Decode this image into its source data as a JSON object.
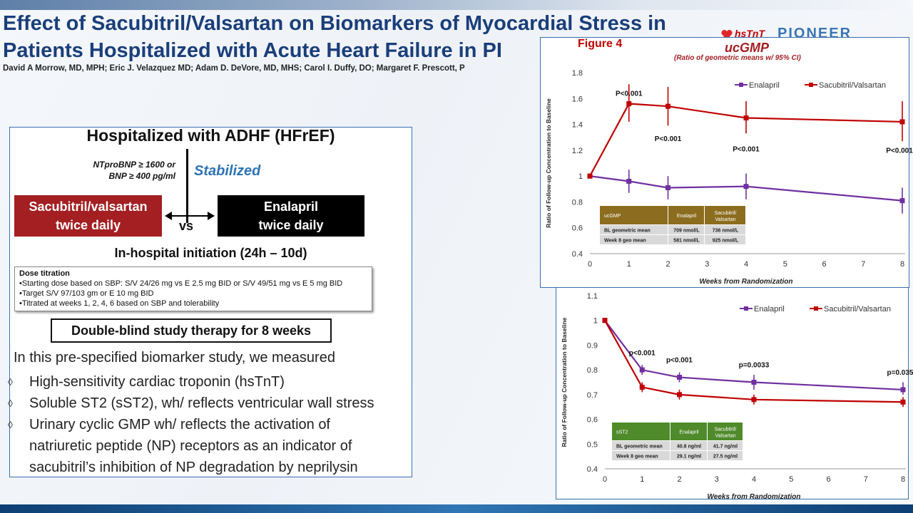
{
  "slide": {
    "title_line1": "Effect of Sacubitril/Valsartan on Biomarkers of Myocardial Stress in",
    "title_line2": "Patients Hospitalized with Acute Heart Failure in PI",
    "authors": "David A Morrow, MD, MPH; Eric J. Velazquez MD; Adam D. DeVore, MD, MHS; Carol I. Duffy, DO; Margaret F. Prescott, P",
    "logo_label": "hsTnT",
    "logo_text": "PIONEER"
  },
  "design": {
    "heading": "Hospitalized with ADHF (HFrEF)",
    "criteria_line1": "NTproBNP ≥ 1600 or",
    "criteria_line2": "BNP ≥ 400 pg/ml",
    "stabilized": "Stabilized",
    "arm1_line1": "Sacubitril/valsartan",
    "arm1_line2": "twice daily",
    "vs": "vs",
    "arm2_line1": "Enalapril",
    "arm2_line2": "twice daily",
    "initiation": "In-hospital initiation (24h – 10d)",
    "titration_heading": "Dose titration",
    "titration_items": [
      "•Starting dose based on SBP: S/V 24/26 mg vs E 2.5 mg BID or S/V 49/51 mg vs E 5 mg BID",
      "•Target S/V 97/103 gm or E 10 mg BID",
      "•Titrated at weeks 1, 2, 4, 6 based on SBP and tolerability"
    ],
    "double_blind": "Double-blind study therapy for 8 weeks",
    "intro": "In this pre-specified biomarker study, we measured",
    "bullet_glyph": "◊",
    "bullets": [
      "High-sensitivity cardiac troponin (hsTnT)",
      "Soluble ST2 (sST2), wh/ reflects ventricular wall stress",
      "Urinary cyclic GMP wh/ reflects the activation of",
      "natriuretic peptide (NP) receptors as an indicator of",
      "sacubitril’s inhibition of NP degradation by neprilysin"
    ]
  },
  "figure_label": "Figure 4",
  "colors": {
    "enalapril": "#7030a0",
    "sacubitril": "#c00000",
    "table_header": "#8c6d1f",
    "table_header2": "#4f8a2b"
  },
  "chart_data": [
    {
      "type": "line",
      "title": "ucGMP",
      "subtitle": "(Ratio of geometric means w/ 95% CI)",
      "xlabel": "Weeks from Randomization",
      "ylabel": "Ratio of Follow-up Concentration to Baseline",
      "x": [
        0,
        1,
        2,
        4,
        8
      ],
      "xticks": [
        0,
        1,
        2,
        3,
        4,
        5,
        6,
        7,
        8
      ],
      "yticks": [
        "0.4",
        "0.6",
        "0.8",
        "1",
        "1.2",
        "1.4",
        "1.6",
        "1.8"
      ],
      "ylim": [
        0.4,
        1.8
      ],
      "legend_position": "top-right",
      "grid": false,
      "series": [
        {
          "name": "Enalapril",
          "color": "#7030a0",
          "values": [
            1.0,
            0.96,
            0.91,
            0.92,
            0.81
          ],
          "ci_low": [
            1.0,
            0.87,
            0.82,
            0.82,
            0.71
          ],
          "ci_high": [
            1.0,
            1.05,
            1.0,
            1.02,
            0.91
          ]
        },
        {
          "name": "Sacubitril/Valsartan",
          "color": "#c00000",
          "values": [
            1.0,
            1.56,
            1.54,
            1.45,
            1.42
          ],
          "ci_low": [
            1.0,
            1.42,
            1.39,
            1.33,
            1.27
          ],
          "ci_high": [
            1.0,
            1.71,
            1.69,
            1.58,
            1.58
          ]
        }
      ],
      "annotations": [
        {
          "text": "P<0.001",
          "x": 1,
          "y": 1.62
        },
        {
          "text": "P<0.001",
          "x": 2,
          "y": 1.27
        },
        {
          "text": "P<0.001",
          "x": 4,
          "y": 1.19
        },
        {
          "text": "P<0.001",
          "x": 8,
          "y": 1.18
        }
      ],
      "table": {
        "header": [
          "ucGMP",
          "Enalapril",
          "Sacubitril/ Valsartan"
        ],
        "rows": [
          [
            "BL geometric mean",
            "709 nmol/L",
            "736 nmol/L"
          ],
          [
            "Week 8 geo mean",
            "581 nmol/L",
            "925 nmol/L"
          ]
        ]
      }
    },
    {
      "type": "line",
      "title": "",
      "xlabel": "Weeks from Randomization",
      "ylabel": "Ratio of Follow-up Concentration to Baseline",
      "x": [
        0,
        1,
        2,
        4,
        8
      ],
      "xticks": [
        0,
        1,
        2,
        3,
        4,
        5,
        6,
        7,
        8
      ],
      "yticks": [
        "0.4",
        "0.5",
        "0.6",
        "0.7",
        "0.8",
        "0.9",
        "1",
        "1.1"
      ],
      "ylim": [
        0.4,
        1.1
      ],
      "legend_position": "top-right",
      "grid": false,
      "series": [
        {
          "name": "Enalapril",
          "color": "#7030a0",
          "values": [
            1.0,
            0.8,
            0.77,
            0.75,
            0.72
          ],
          "ci_low": [
            1.0,
            0.78,
            0.75,
            0.72,
            0.7
          ],
          "ci_high": [
            1.0,
            0.82,
            0.79,
            0.78,
            0.75
          ]
        },
        {
          "name": "Sacubitril/Valsartan",
          "color": "#c00000",
          "values": [
            1.0,
            0.73,
            0.7,
            0.68,
            0.67
          ],
          "ci_low": [
            1.0,
            0.71,
            0.68,
            0.66,
            0.65
          ],
          "ci_high": [
            1.0,
            0.75,
            0.72,
            0.7,
            0.69
          ]
        }
      ],
      "annotations": [
        {
          "text": "p<0.001",
          "x": 1,
          "y": 0.86
        },
        {
          "text": "p<0.001",
          "x": 2,
          "y": 0.83
        },
        {
          "text": "p=0.0033",
          "x": 4,
          "y": 0.81
        },
        {
          "text": "p=0.035",
          "x": 8,
          "y": 0.78
        }
      ],
      "table": {
        "header": [
          "sST2",
          "Enalapril",
          "Sacubitril/ Valsartan"
        ],
        "rows": [
          [
            "BL geometric mean",
            "40.8 ng/ml",
            "41.7 ng/ml"
          ],
          [
            "Week 8 geo mean",
            "29.1 ng/ml",
            "27.5 ng/ml"
          ]
        ]
      }
    }
  ]
}
